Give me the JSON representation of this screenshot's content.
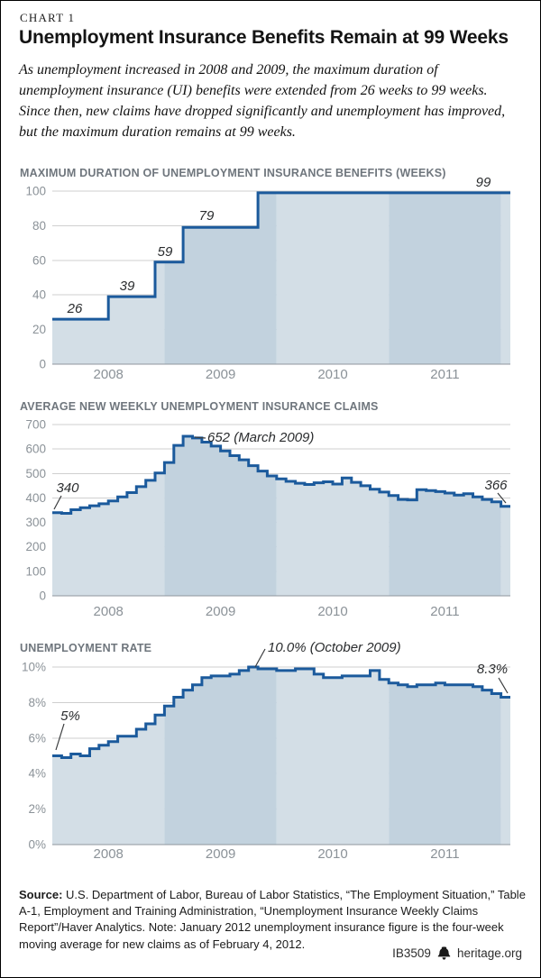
{
  "kicker": "CHART 1",
  "title": "Unemployment Insurance Benefits Remain at 99 Weeks",
  "intro": "As unemployment increased in 2008 and 2009, the maximum duration of unemployment insurance (UI) benefits were extended from 26 weeks to 99 weeks. Since then, new claims have dropped significantly and unemployment has improved, but the maximum duration remains at 99 weeks.",
  "colors": {
    "line": "#1b5a9c",
    "band_light": "#d3dee6",
    "band_dark": "#c2d2de",
    "grid": "#cfcfcf",
    "axis": "#8f969c",
    "tick_text": "#8b9298",
    "annotation_text": "#2a2c2e",
    "section_title": "#6f767d"
  },
  "footer": {
    "source_label": "Source:",
    "source_text": " U.S. Department of Labor, Bureau of Labor Statistics, “The Employment Situation,” Table A-1, Employment and Training Administration, “Unemployment Insurance Weekly Claims Report”/Haver Analytics. Note: January 2012 unemployment insurance figure is the four-week moving average for new claims as of February 4, 2012.",
    "id": "IB3509",
    "brand": "heritage.org",
    "logo_icon": "liberty-bell-icon"
  },
  "chart_data": [
    {
      "type": "area",
      "id": "max-duration",
      "title": "MAXIMUM DURATION OF UNEMPLOYMENT INSURANCE BENEFITS (WEEKS)",
      "x_start": "2008-01",
      "x_end": "2012-01",
      "x_year_labels": [
        "2008",
        "2009",
        "2010",
        "2011"
      ],
      "ylim": [
        0,
        100
      ],
      "y_ticks": [
        0,
        20,
        40,
        60,
        80,
        100
      ],
      "y_tick_labels": [
        "0",
        "20",
        "40",
        "60",
        "80",
        "100"
      ],
      "grid": true,
      "legend": "none",
      "values": [
        26,
        26,
        26,
        26,
        26,
        26,
        39,
        39,
        39,
        39,
        39,
        59,
        59,
        59,
        79,
        79,
        79,
        79,
        79,
        79,
        79,
        79,
        99,
        99,
        99,
        99,
        99,
        99,
        99,
        99,
        99,
        99,
        99,
        99,
        99,
        99,
        99,
        99,
        99,
        99,
        99,
        99,
        99,
        99,
        99,
        99,
        99,
        99,
        99
      ],
      "annotations": [
        {
          "label": "26",
          "value": 26
        },
        {
          "label": "39",
          "value": 39
        },
        {
          "label": "59",
          "value": 59
        },
        {
          "label": "79",
          "value": 79
        },
        {
          "label": "99",
          "value": 99
        }
      ]
    },
    {
      "type": "area",
      "id": "new-weekly-claims",
      "title": "AVERAGE NEW WEEKLY UNEMPLOYMENT INSURANCE CLAIMS",
      "x_start": "2008-01",
      "x_end": "2012-01",
      "x_year_labels": [
        "2008",
        "2009",
        "2010",
        "2011"
      ],
      "ylim": [
        0,
        700
      ],
      "y_ticks": [
        0,
        100,
        200,
        300,
        400,
        500,
        600,
        700
      ],
      "y_tick_labels": [
        "0",
        "100",
        "200",
        "300",
        "400",
        "500",
        "600",
        "700"
      ],
      "grid": true,
      "legend": "none",
      "values": [
        340,
        337,
        352,
        360,
        368,
        376,
        388,
        404,
        422,
        446,
        472,
        502,
        545,
        615,
        652,
        645,
        628,
        612,
        592,
        573,
        556,
        532,
        510,
        490,
        478,
        468,
        460,
        455,
        462,
        466,
        457,
        482,
        464,
        450,
        436,
        424,
        410,
        394,
        392,
        434,
        430,
        426,
        420,
        412,
        417,
        404,
        394,
        384,
        366
      ],
      "annotations": [
        {
          "label": "340",
          "value": 340,
          "x": "2008-01"
        },
        {
          "label": "652 (March 2009)",
          "value": 652,
          "x": "2009-03"
        },
        {
          "label": "366",
          "value": 366,
          "x": "2012-01"
        }
      ]
    },
    {
      "type": "area",
      "id": "unemployment-rate",
      "title": "UNEMPLOYMENT RATE",
      "x_start": "2008-01",
      "x_end": "2012-01",
      "x_year_labels": [
        "2008",
        "2009",
        "2010",
        "2011"
      ],
      "ylim": [
        0,
        10
      ],
      "y_ticks": [
        0,
        2,
        4,
        6,
        8,
        10
      ],
      "y_tick_labels": [
        "0%",
        "2%",
        "4%",
        "6%",
        "8%",
        "10%"
      ],
      "grid": true,
      "legend": "none",
      "values": [
        5.0,
        4.9,
        5.1,
        5.0,
        5.4,
        5.6,
        5.8,
        6.1,
        6.1,
        6.5,
        6.8,
        7.3,
        7.8,
        8.3,
        8.7,
        9.0,
        9.4,
        9.5,
        9.5,
        9.6,
        9.8,
        10.0,
        9.9,
        9.9,
        9.8,
        9.8,
        9.9,
        9.9,
        9.6,
        9.4,
        9.4,
        9.5,
        9.5,
        9.5,
        9.8,
        9.3,
        9.1,
        9.0,
        8.9,
        9.0,
        9.0,
        9.1,
        9.0,
        9.0,
        9.0,
        8.9,
        8.7,
        8.5,
        8.3
      ],
      "annotations": [
        {
          "label": "5%",
          "value": 5.0,
          "x": "2008-01"
        },
        {
          "label": "10.0% (October 2009)",
          "value": 10.0,
          "x": "2009-10"
        },
        {
          "label": "8.3%",
          "value": 8.3,
          "x": "2012-01"
        }
      ]
    }
  ]
}
